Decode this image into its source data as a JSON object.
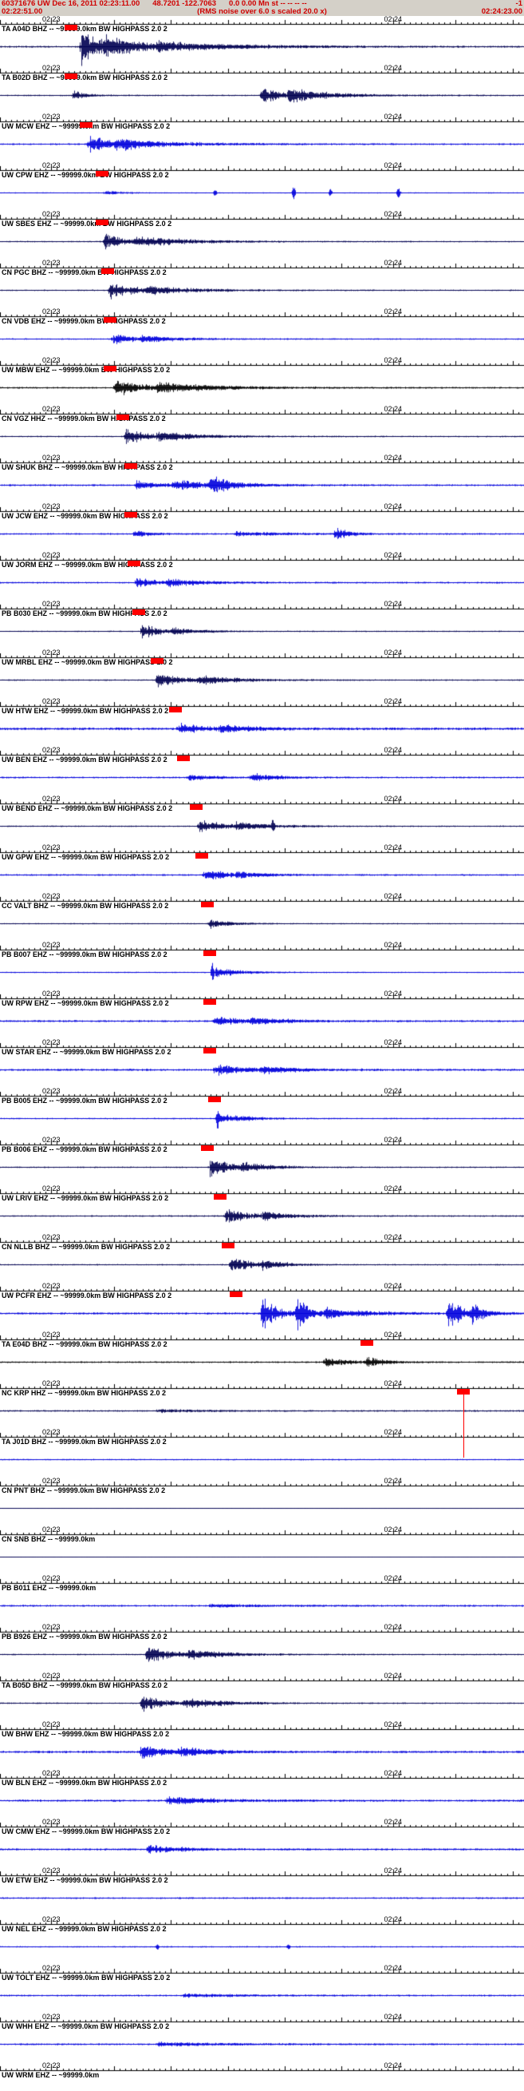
{
  "header": {
    "event_line": {
      "id_time": "60371676 UW Dec 16, 2011 02:23:11.00",
      "location": "48.7201 -122.7063",
      "magnitude": "0.0 0.00 Mn st -- -- -- --",
      "flag": "-1"
    },
    "window_line": {
      "start": "02:22:51.00",
      "note": "(RMS noise over 6.0 s scaled 20.0 x)",
      "end": "02:24:23.00"
    },
    "bg": "#d4d0c8",
    "fg": "#cf0000"
  },
  "timeline": {
    "left_label": "02:23",
    "right_label": "02:24",
    "left_sec": 9,
    "right_sec": 69,
    "span_sec": 92
  },
  "palette": {
    "blue": "#0000dd",
    "navy": "#000050",
    "black": "#000000",
    "pick": "#ff0000",
    "axis": "#000000"
  },
  "traces": [
    {
      "label": "TA A04D BHZ -- ~99999.0km BW HIGHPASS 2.0 2",
      "color": "navy",
      "pick": 0.135,
      "noise": 1.3,
      "bursts": [
        [
          0.155,
          0.1,
          26
        ],
        [
          0.2,
          0.3,
          10
        ],
        [
          0.3,
          0.45,
          4
        ]
      ],
      "spikes": []
    },
    {
      "label": "TA B02D BHZ -- ~99999.0km BW HIGHPASS 2.0 2",
      "color": "navy",
      "pick": 0.135,
      "noise": 1.0,
      "bursts": [
        [
          0.14,
          0.06,
          7
        ],
        [
          0.5,
          0.1,
          11
        ],
        [
          0.55,
          0.22,
          9
        ]
      ],
      "spikes": []
    },
    {
      "label": "UW MCW EHZ -- ~99999.0km BW HIGHPASS 2.0 2",
      "color": "blue",
      "pick": 0.165,
      "noise": 1.2,
      "bursts": [
        [
          0.17,
          0.09,
          15
        ],
        [
          0.22,
          0.3,
          7
        ]
      ],
      "spikes": []
    },
    {
      "label": "UW CPW EHZ -- ~99999.0km BW HIGHPASS 2.0 2",
      "color": "blue",
      "pick": 0.195,
      "noise": 0.8,
      "bursts": [
        [
          0.2,
          0.08,
          3
        ]
      ],
      "spikes": [
        [
          0.41,
          5
        ],
        [
          0.56,
          9
        ],
        [
          0.63,
          5
        ],
        [
          0.76,
          8
        ]
      ]
    },
    {
      "label": "UW SBES EHZ -- ~99999.0km BW HIGHPASS 2.0 2",
      "color": "navy",
      "pick": 0.195,
      "noise": 1.0,
      "bursts": [
        [
          0.2,
          0.1,
          11
        ],
        [
          0.26,
          0.28,
          6
        ]
      ],
      "spikes": []
    },
    {
      "label": "CN PGC BHZ -- ~99999.0km BW HIGHPASS 2.0 2",
      "color": "navy",
      "pick": 0.205,
      "noise": 1.0,
      "bursts": [
        [
          0.21,
          0.12,
          12
        ],
        [
          0.28,
          0.25,
          5
        ]
      ],
      "spikes": []
    },
    {
      "label": "CN VDB EHZ -- ~99999.0km BW HIGHPASS 2.0 2",
      "color": "blue",
      "pick": 0.21,
      "noise": 1.0,
      "bursts": [
        [
          0.215,
          0.1,
          9
        ],
        [
          0.27,
          0.2,
          4
        ]
      ],
      "spikes": []
    },
    {
      "label": "UW MBW EHZ -- ~99999.0km BW HIGHPASS 2.0 2",
      "color": "black",
      "pick": 0.21,
      "noise": 1.2,
      "bursts": [
        [
          0.22,
          0.12,
          13
        ],
        [
          0.3,
          0.3,
          7
        ]
      ],
      "spikes": []
    },
    {
      "label": "CN VGZ HHZ -- ~99999.0km BW HIGHPASS 2.0 2",
      "color": "navy",
      "pick": 0.235,
      "noise": 1.0,
      "bursts": [
        [
          0.24,
          0.1,
          12
        ],
        [
          0.3,
          0.22,
          6
        ]
      ],
      "spikes": []
    },
    {
      "label": "UW SHUK BHZ -- ~99999.0km BW HIGHPASS 2.0 2",
      "color": "blue",
      "pick": 0.25,
      "noise": 1.3,
      "bursts": [
        [
          0.26,
          0.1,
          8
        ],
        [
          0.33,
          0.25,
          6
        ],
        [
          0.4,
          0.1,
          11
        ]
      ],
      "spikes": []
    },
    {
      "label": "UW JCW EHZ -- ~99999.0km BW HIGHPASS 2.0 2",
      "color": "blue",
      "pick": 0.25,
      "noise": 1.2,
      "bursts": [
        [
          0.255,
          0.08,
          5
        ],
        [
          0.45,
          0.25,
          3
        ],
        [
          0.64,
          0.06,
          9
        ]
      ],
      "spikes": []
    },
    {
      "label": "UW JORM EHZ -- ~99999.0km BW HIGHPASS 2.0 2",
      "color": "blue",
      "pick": 0.255,
      "noise": 1.2,
      "bursts": [
        [
          0.26,
          0.1,
          8
        ],
        [
          0.32,
          0.2,
          5
        ]
      ],
      "spikes": []
    },
    {
      "label": "PB B030 EHZ -- ~99999.0km BW HIGHPASS 2.0 2",
      "color": "navy",
      "pick": 0.265,
      "noise": 0.9,
      "bursts": [
        [
          0.27,
          0.1,
          10
        ],
        [
          0.33,
          0.15,
          4
        ]
      ],
      "spikes": []
    },
    {
      "label": "UW MRBL EHZ -- ~99999.0km BW HIGHPASS 2.0 2",
      "color": "navy",
      "pick": 0.3,
      "noise": 1.0,
      "bursts": [
        [
          0.3,
          0.12,
          11
        ],
        [
          0.38,
          0.22,
          5
        ]
      ],
      "spikes": []
    },
    {
      "label": "UW HTW EHZ -- ~99999.0km BW HIGHPASS 2.0 2",
      "color": "blue",
      "pick": 0.335,
      "noise": 1.8,
      "bursts": [
        [
          0.34,
          0.12,
          8
        ],
        [
          0.42,
          0.2,
          4
        ]
      ],
      "spikes": []
    },
    {
      "label": "UW BEN EHZ -- ~99999.0km BW HIGHPASS 2.0 2",
      "color": "blue",
      "pick": 0.35,
      "noise": 1.2,
      "bursts": [
        [
          0.36,
          0.12,
          4
        ],
        [
          0.48,
          0.12,
          6
        ]
      ],
      "spikes": []
    },
    {
      "label": "UW BEND EHZ -- ~99999.0km BW HIGHPASS 2.0 2",
      "color": "navy",
      "pick": 0.375,
      "noise": 1.0,
      "bursts": [
        [
          0.38,
          0.12,
          10
        ],
        [
          0.45,
          0.18,
          5
        ]
      ],
      "spikes": [
        [
          0.52,
          9
        ]
      ]
    },
    {
      "label": "UW GPW EHZ -- ~99999.0km BW HIGHPASS 2.0 2",
      "color": "blue",
      "pick": 0.385,
      "noise": 1.2,
      "bursts": [
        [
          0.39,
          0.1,
          9
        ],
        [
          0.45,
          0.15,
          4
        ]
      ],
      "spikes": []
    },
    {
      "label": "CC VALT BHZ -- ~99999.0km BW HIGHPASS 2.0 2",
      "color": "navy",
      "pick": 0.395,
      "noise": 0.9,
      "bursts": [
        [
          0.4,
          0.1,
          7
        ]
      ],
      "spikes": []
    },
    {
      "label": "PB B007 EHZ -- ~99999.0km BW HIGHPASS 2.0 2",
      "color": "blue",
      "pick": 0.4,
      "noise": 0.9,
      "bursts": [
        [
          0.41,
          0.12,
          7
        ]
      ],
      "spikes": [
        [
          0.405,
          13
        ]
      ]
    },
    {
      "label": "UW RPW EHZ -- ~99999.0km BW HIGHPASS 2.0 2",
      "color": "blue",
      "pick": 0.4,
      "noise": 1.4,
      "bursts": [
        [
          0.41,
          0.12,
          7
        ],
        [
          0.48,
          0.2,
          4
        ]
      ],
      "spikes": []
    },
    {
      "label": "UW STAR EHZ -- ~99999.0km BW HIGHPASS 2.0 2",
      "color": "blue",
      "pick": 0.4,
      "noise": 1.5,
      "bursts": [
        [
          0.41,
          0.15,
          8
        ],
        [
          0.5,
          0.2,
          4
        ]
      ],
      "spikes": []
    },
    {
      "label": "PB B005 EHZ -- ~99999.0km BW HIGHPASS 2.0 2",
      "color": "blue",
      "pick": 0.41,
      "noise": 1.0,
      "bursts": [
        [
          0.42,
          0.12,
          8
        ]
      ],
      "spikes": [
        [
          0.415,
          15
        ]
      ]
    },
    {
      "label": "PB B006 EHZ -- ~99999.0km BW HIGHPASS 2.0 2",
      "color": "navy",
      "pick": 0.395,
      "noise": 1.0,
      "bursts": [
        [
          0.4,
          0.1,
          15
        ],
        [
          0.46,
          0.15,
          6
        ]
      ],
      "spikes": []
    },
    {
      "label": "UW LRIV EHZ -- ~99999.0km BW HIGHPASS 2.0 2",
      "color": "navy",
      "pick": 0.42,
      "noise": 1.1,
      "bursts": [
        [
          0.43,
          0.12,
          10
        ],
        [
          0.5,
          0.15,
          5
        ]
      ],
      "spikes": []
    },
    {
      "label": "CN NLLB BHZ -- ~99999.0km BW HIGHPASS 2.0 2",
      "color": "navy",
      "pick": 0.435,
      "noise": 1.0,
      "bursts": [
        [
          0.44,
          0.1,
          12
        ],
        [
          0.5,
          0.12,
          5
        ]
      ],
      "spikes": []
    },
    {
      "label": "UW PCFR EHZ -- ~99999.0km BW HIGHPASS 2.0 2",
      "color": "blue",
      "pick": 0.45,
      "noise": 1.5,
      "bursts": [
        [
          0.5,
          0.07,
          26
        ],
        [
          0.565,
          0.06,
          24
        ],
        [
          0.62,
          0.2,
          7
        ],
        [
          0.855,
          0.08,
          22
        ],
        [
          0.9,
          0.06,
          12
        ]
      ],
      "spikes": []
    },
    {
      "label": "TA E04D BHZ -- ~99999.0km BW HIGHPASS 2.0 2",
      "color": "black",
      "pick": 0.7,
      "noise": 1.2,
      "bursts": [
        [
          0.62,
          0.1,
          8
        ],
        [
          0.7,
          0.08,
          7
        ]
      ],
      "spikes": []
    },
    {
      "label": "NC KRP HHZ -- ~99999.0km BW HIGHPASS 2.0 2",
      "color": "navy",
      "pick": 0.885,
      "pick_line": 80,
      "noise": 1.2,
      "bursts": [
        [
          0.3,
          0.25,
          2
        ]
      ],
      "spikes": []
    },
    {
      "label": "TA J01D BHZ -- ~99999.0km BW HIGHPASS 2.0 2",
      "color": "blue",
      "noise": 1.0,
      "bursts": [],
      "spikes": []
    },
    {
      "label": "CN PNT BHZ -- ~99999.0km BW HIGHPASS 2.0 2",
      "color": "navy",
      "noise": 0.5,
      "bursts": [],
      "spikes": []
    },
    {
      "label": "CN SNB BHZ -- ~99999.0km",
      "color": "navy",
      "noise": 0.5,
      "bursts": [],
      "spikes": []
    },
    {
      "label": "PB B011 EHZ -- ~99999.0km",
      "color": "blue",
      "noise": 1.3,
      "bursts": [
        [
          0.4,
          0.3,
          2
        ]
      ],
      "spikes": []
    },
    {
      "label": "PB B926 EHZ -- ~99999.0km BW HIGHPASS 2.0 2",
      "color": "navy",
      "noise": 1.0,
      "bursts": [
        [
          0.28,
          0.12,
          12
        ],
        [
          0.36,
          0.2,
          6
        ]
      ],
      "spikes": []
    },
    {
      "label": "TA B05D BHZ -- ~99999.0km BW HIGHPASS 2.0 2",
      "color": "navy",
      "noise": 1.0,
      "bursts": [
        [
          0.27,
          0.12,
          11
        ],
        [
          0.35,
          0.22,
          6
        ]
      ],
      "spikes": []
    },
    {
      "label": "UW BHW EHZ -- ~99999.0km BW HIGHPASS 2.0 2",
      "color": "blue",
      "noise": 1.6,
      "bursts": [
        [
          0.27,
          0.1,
          11
        ],
        [
          0.34,
          0.2,
          6
        ]
      ],
      "spikes": []
    },
    {
      "label": "UW BLN EHZ -- ~99999.0km BW HIGHPASS 2.0 2",
      "color": "blue",
      "noise": 1.5,
      "bursts": [
        [
          0.32,
          0.25,
          5
        ]
      ],
      "spikes": []
    },
    {
      "label": "UW CMW EHZ -- ~99999.0km BW HIGHPASS 2.0 2",
      "color": "blue",
      "noise": 1.4,
      "bursts": [
        [
          0.28,
          0.15,
          7
        ]
      ],
      "spikes": []
    },
    {
      "label": "UW ETW EHZ -- ~99999.0km BW HIGHPASS 2.0 2",
      "color": "blue",
      "noise": 1.2,
      "bursts": [],
      "spikes": []
    },
    {
      "label": "UW NEL EHZ -- ~99999.0km BW HIGHPASS 2.0 2",
      "color": "blue",
      "noise": 1.0,
      "bursts": [],
      "spikes": [
        [
          0.3,
          4
        ],
        [
          0.55,
          3
        ]
      ]
    },
    {
      "label": "UW TOLT EHZ -- ~99999.0km BW HIGHPASS 2.0 2",
      "color": "blue",
      "noise": 1.2,
      "bursts": [
        [
          0.35,
          0.3,
          2.5
        ]
      ],
      "spikes": []
    },
    {
      "label": "UW WHH EHZ -- ~99999.0km BW HIGHPASS 2.0 2",
      "color": "blue",
      "noise": 1.3,
      "bursts": [
        [
          0.3,
          0.3,
          3
        ]
      ],
      "spikes": []
    },
    {
      "label": "UW WRM EHZ -- ~99999.0km",
      "color": "blue",
      "noise": 1.2,
      "bursts": [],
      "spikes": []
    }
  ]
}
